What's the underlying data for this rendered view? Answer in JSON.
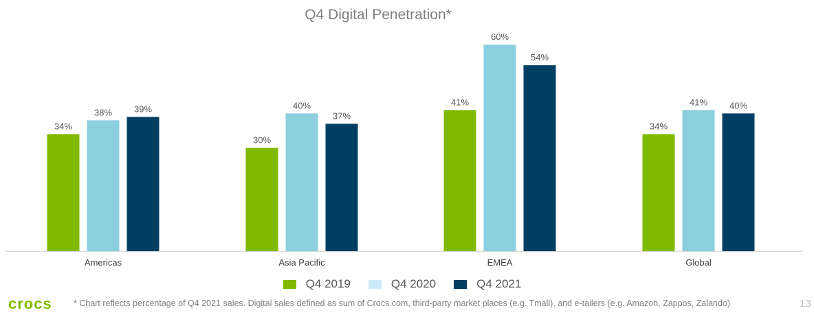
{
  "chart_data": {
    "type": "bar",
    "title": "Q4 Digital Penetration*",
    "categories": [
      "Americas",
      "Asia Pacific",
      "EMEA",
      "Global"
    ],
    "series": [
      {
        "name": "Q4 2019",
        "color": "#7fba00",
        "legend_color": "#7fba00",
        "values": [
          34,
          30,
          41,
          34
        ]
      },
      {
        "name": "Q4 2020",
        "color": "#8ccfdf",
        "legend_color": "#cdeafa",
        "values": [
          38,
          40,
          60,
          41
        ]
      },
      {
        "name": "Q4 2021",
        "color": "#003f63",
        "legend_color": "#003f63",
        "values": [
          39,
          37,
          54,
          40
        ]
      }
    ],
    "value_suffix": "%",
    "ylim": [
      0,
      60
    ],
    "grid": false,
    "legend_placement": "bottom"
  },
  "footer": {
    "logo": "crocs",
    "note": "* Chart reflects percentage of Q4 2021 sales. Digital sales defined as sum of Crocs.com, third-party market places (e.g. Tmall), and e-tailers (e.g. Amazon, Zappos, Zalando)",
    "page_number": "13"
  }
}
